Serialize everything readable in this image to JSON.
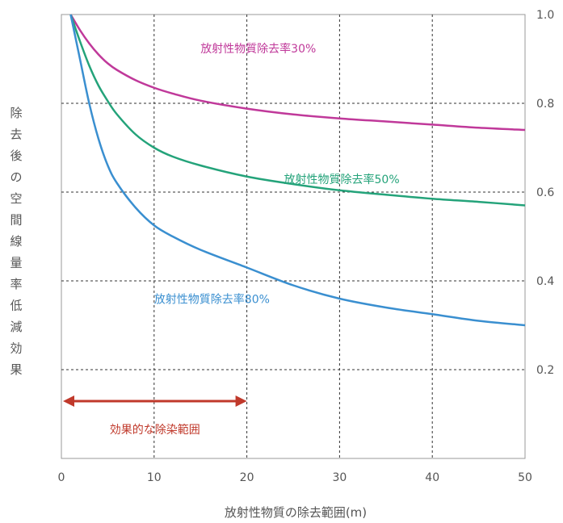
{
  "chart_data": {
    "type": "line",
    "xlabel": "放射性物質の除去範囲(m)",
    "ylabel": "除去後の空間線量率低減効果",
    "xlim": [
      0,
      50
    ],
    "ylim": [
      0,
      1.0
    ],
    "x_ticks": [
      "0",
      "10",
      "20",
      "30",
      "40",
      "50"
    ],
    "y_ticks": [
      "0.2",
      "0.4",
      "0.6",
      "0.8",
      "1.0"
    ],
    "y_axis_position": "right",
    "grid": true,
    "series": [
      {
        "name": "放射性物質除去率30%",
        "color": "#c0399a",
        "x": [
          1,
          2,
          3,
          4,
          5,
          6,
          8,
          10,
          12,
          15,
          20,
          25,
          30,
          35,
          40,
          45,
          50
        ],
        "y": [
          1.0,
          0.965,
          0.935,
          0.91,
          0.89,
          0.875,
          0.852,
          0.835,
          0.822,
          0.806,
          0.788,
          0.775,
          0.766,
          0.759,
          0.752,
          0.745,
          0.74
        ]
      },
      {
        "name": "放射性物質除去率50%",
        "color": "#24a37a",
        "x": [
          1,
          2,
          3,
          4,
          5,
          6,
          8,
          10,
          12,
          15,
          20,
          25,
          30,
          35,
          40,
          45,
          50
        ],
        "y": [
          1.0,
          0.94,
          0.885,
          0.84,
          0.805,
          0.775,
          0.73,
          0.7,
          0.68,
          0.66,
          0.635,
          0.618,
          0.604,
          0.594,
          0.585,
          0.578,
          0.57
        ]
      },
      {
        "name": "放射性物質除去率80%",
        "color": "#3a8fd0",
        "x": [
          1,
          2,
          3,
          4,
          5,
          6,
          8,
          10,
          12,
          15,
          20,
          25,
          30,
          35,
          40,
          45,
          50
        ],
        "y": [
          1.0,
          0.9,
          0.8,
          0.72,
          0.66,
          0.62,
          0.565,
          0.525,
          0.5,
          0.47,
          0.43,
          0.39,
          0.36,
          0.34,
          0.325,
          0.31,
          0.3
        ]
      }
    ],
    "annotation": {
      "text": "効果的な除染範囲",
      "x_range": [
        0,
        20
      ],
      "y": 0.1,
      "color": "#c0392b"
    },
    "series_label_positions": [
      {
        "x": 15,
        "y": 0.915
      },
      {
        "x": 24,
        "y": 0.62
      },
      {
        "x": 10,
        "y": 0.35
      }
    ]
  }
}
